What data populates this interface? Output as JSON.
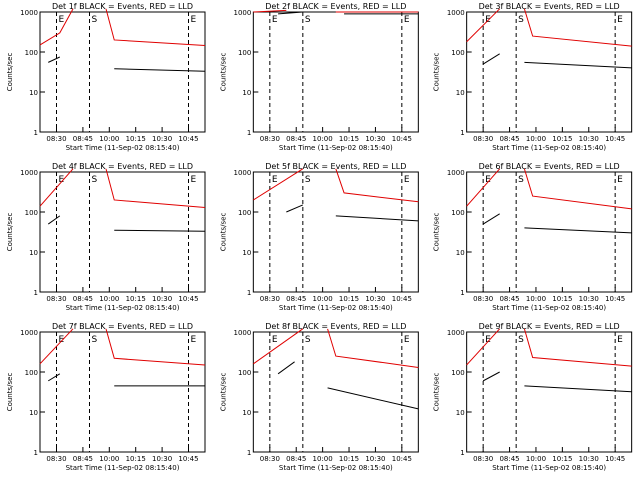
{
  "xlabel": "Start Time (11-Sep-02 08:15:40)",
  "ylabel": "Counts/sec",
  "x_ticks": [
    "08:30",
    "08:45",
    "10:00",
    "10:15",
    "10:30",
    "10:45"
  ],
  "y_ticks": [
    "1",
    "10",
    "100",
    "1000"
  ],
  "markers": [
    "E",
    "S",
    "E"
  ],
  "colors": {
    "events": "#000000",
    "lld": "#e00000"
  },
  "chart_data": [
    {
      "type": "line",
      "title": "Det 1f BLACK = Events, RED = LLD",
      "y_scale": "log",
      "ylim": [
        1,
        1000
      ],
      "series": [
        {
          "name": "Events",
          "segments": [
            [
              [
                0.05,
                55
              ],
              [
                0.12,
                75
              ]
            ],
            [
              [
                0.45,
                38
              ],
              [
                1.0,
                33
              ]
            ]
          ]
        },
        {
          "name": "LLD",
          "segments": [
            [
              [
                0.0,
                150
              ],
              [
                0.12,
                300
              ],
              [
                0.2,
                1200
              ]
            ],
            [
              [
                0.4,
                1200
              ],
              [
                0.45,
                200
              ],
              [
                1.0,
                145
              ]
            ]
          ]
        }
      ]
    },
    {
      "type": "line",
      "title": "Det 2f BLACK = Events, RED = LLD",
      "y_scale": "log",
      "ylim": [
        1,
        1000
      ],
      "series": [
        {
          "name": "Events",
          "segments": [
            [
              [
                0.15,
                900
              ],
              [
                0.3,
                1000
              ]
            ],
            [
              [
                0.55,
                900
              ],
              [
                1.0,
                900
              ]
            ]
          ]
        },
        {
          "name": "LLD",
          "segments": [
            [
              [
                0.0,
                1000
              ],
              [
                0.2,
                1100
              ]
            ],
            [
              [
                0.5,
                1000
              ],
              [
                1.0,
                1000
              ]
            ]
          ]
        }
      ]
    },
    {
      "type": "line",
      "title": "Det 3f BLACK = Events, RED = LLD",
      "y_scale": "log",
      "ylim": [
        1,
        1000
      ],
      "series": [
        {
          "name": "Events",
          "segments": [
            [
              [
                0.1,
                50
              ],
              [
                0.2,
                90
              ]
            ],
            [
              [
                0.35,
                55
              ],
              [
                1.0,
                40
              ]
            ]
          ]
        },
        {
          "name": "LLD",
          "segments": [
            [
              [
                0.0,
                180
              ],
              [
                0.2,
                1200
              ]
            ],
            [
              [
                0.35,
                1200
              ],
              [
                0.4,
                250
              ],
              [
                1.0,
                140
              ]
            ]
          ]
        }
      ]
    },
    {
      "type": "line",
      "title": "Det 4f BLACK = Events, RED = LLD",
      "y_scale": "log",
      "ylim": [
        1,
        1000
      ],
      "series": [
        {
          "name": "Events",
          "segments": [
            [
              [
                0.05,
                50
              ],
              [
                0.12,
                80
              ]
            ],
            [
              [
                0.45,
                35
              ],
              [
                1.0,
                33
              ]
            ]
          ]
        },
        {
          "name": "LLD",
          "segments": [
            [
              [
                0.0,
                140
              ],
              [
                0.2,
                1200
              ]
            ],
            [
              [
                0.4,
                1200
              ],
              [
                0.45,
                200
              ],
              [
                1.0,
                130
              ]
            ]
          ]
        }
      ]
    },
    {
      "type": "line",
      "title": "Det 5f BLACK = Events, RED = LLD",
      "y_scale": "log",
      "ylim": [
        1,
        1000
      ],
      "series": [
        {
          "name": "Events",
          "segments": [
            [
              [
                0.2,
                100
              ],
              [
                0.3,
                150
              ]
            ],
            [
              [
                0.5,
                80
              ],
              [
                1.0,
                60
              ]
            ]
          ]
        },
        {
          "name": "LLD",
          "segments": [
            [
              [
                0.0,
                200
              ],
              [
                0.3,
                1200
              ]
            ],
            [
              [
                0.5,
                1200
              ],
              [
                0.55,
                300
              ],
              [
                1.0,
                180
              ]
            ]
          ]
        }
      ]
    },
    {
      "type": "line",
      "title": "Det 6f BLACK = Events, RED = LLD",
      "y_scale": "log",
      "ylim": [
        1,
        1000
      ],
      "series": [
        {
          "name": "Events",
          "segments": [
            [
              [
                0.1,
                50
              ],
              [
                0.2,
                90
              ]
            ],
            [
              [
                0.35,
                40
              ],
              [
                1.0,
                30
              ]
            ]
          ]
        },
        {
          "name": "LLD",
          "segments": [
            [
              [
                0.0,
                140
              ],
              [
                0.2,
                1200
              ]
            ],
            [
              [
                0.35,
                1200
              ],
              [
                0.4,
                250
              ],
              [
                1.0,
                120
              ]
            ]
          ]
        }
      ]
    },
    {
      "type": "line",
      "title": "Det 7f BLACK = Events, RED = LLD",
      "y_scale": "log",
      "ylim": [
        1,
        1000
      ],
      "series": [
        {
          "name": "Events",
          "segments": [
            [
              [
                0.05,
                60
              ],
              [
                0.12,
                90
              ]
            ],
            [
              [
                0.45,
                45
              ],
              [
                1.0,
                45
              ]
            ]
          ]
        },
        {
          "name": "LLD",
          "segments": [
            [
              [
                0.0,
                160
              ],
              [
                0.2,
                1200
              ]
            ],
            [
              [
                0.4,
                1200
              ],
              [
                0.45,
                220
              ],
              [
                1.0,
                150
              ]
            ]
          ]
        }
      ]
    },
    {
      "type": "line",
      "title": "Det 8f BLACK = Events, RED = LLD",
      "y_scale": "log",
      "ylim": [
        1,
        1000
      ],
      "series": [
        {
          "name": "Events",
          "segments": [
            [
              [
                0.15,
                90
              ],
              [
                0.25,
                180
              ]
            ],
            [
              [
                0.45,
                40
              ],
              [
                1.0,
                12
              ]
            ]
          ]
        },
        {
          "name": "LLD",
          "segments": [
            [
              [
                0.0,
                160
              ],
              [
                0.3,
                1200
              ]
            ],
            [
              [
                0.45,
                1200
              ],
              [
                0.5,
                250
              ],
              [
                1.0,
                130
              ]
            ]
          ]
        }
      ]
    },
    {
      "type": "line",
      "title": "Det 9f BLACK = Events, RED = LLD",
      "y_scale": "log",
      "ylim": [
        1,
        1000
      ],
      "series": [
        {
          "name": "Events",
          "segments": [
            [
              [
                0.1,
                60
              ],
              [
                0.2,
                100
              ]
            ],
            [
              [
                0.35,
                45
              ],
              [
                1.0,
                32
              ]
            ]
          ]
        },
        {
          "name": "LLD",
          "segments": [
            [
              [
                0.0,
                150
              ],
              [
                0.2,
                1200
              ]
            ],
            [
              [
                0.35,
                1200
              ],
              [
                0.4,
                230
              ],
              [
                1.0,
                140
              ]
            ]
          ]
        }
      ]
    }
  ]
}
